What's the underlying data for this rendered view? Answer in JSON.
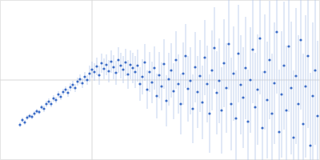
{
  "chart_data": {
    "type": "scatter",
    "x": [
      25,
      28,
      31,
      34,
      37,
      40,
      43,
      46,
      49,
      52,
      55,
      58,
      61,
      64,
      67,
      70,
      73,
      76,
      79,
      82,
      85,
      88,
      91,
      94,
      97,
      100,
      103,
      106,
      109,
      112,
      115,
      118,
      121,
      124,
      127,
      130,
      133,
      136,
      139,
      142,
      145,
      148,
      151,
      154,
      157,
      160,
      163,
      166,
      169,
      172,
      175,
      178,
      181,
      184,
      187,
      190,
      193,
      196,
      199,
      202,
      205,
      208,
      211,
      214,
      217,
      220,
      223,
      226,
      229,
      232,
      235,
      238,
      241,
      244,
      247,
      250,
      253,
      256,
      259,
      262,
      265,
      268,
      271,
      274,
      277,
      280,
      283,
      286,
      289,
      292,
      295,
      298,
      301,
      304,
      307,
      310,
      313,
      316,
      319,
      322,
      325,
      328,
      331,
      334,
      337,
      340,
      343,
      346,
      349,
      352,
      355,
      358,
      361,
      364,
      367,
      370,
      373,
      376,
      379,
      382,
      385,
      388,
      391,
      394,
      397
    ],
    "y": [
      44,
      50,
      47,
      53,
      55,
      54,
      58,
      61,
      60,
      66,
      64,
      70,
      73,
      70,
      77,
      75,
      82,
      79,
      85,
      88,
      84,
      91,
      94,
      90,
      98,
      101,
      96,
      104,
      100,
      108,
      113,
      110,
      117,
      106,
      121,
      114,
      119,
      111,
      123,
      116,
      109,
      125,
      118,
      113,
      122,
      107,
      119,
      115,
      110,
      118,
      95,
      104,
      122,
      88,
      110,
      97,
      115,
      80,
      106,
      92,
      120,
      74,
      101,
      112,
      86,
      125,
      95,
      70,
      108,
      130,
      89,
      99,
      64,
      116,
      85,
      105,
      72,
      128,
      95,
      58,
      112,
      140,
      84,
      99,
      62,
      121,
      90,
      145,
      70,
      108,
      52,
      133,
      94,
      78,
      115,
      48,
      100,
      138,
      66,
      88,
      152,
      40,
      110,
      75,
      125,
      58,
      96,
      160,
      35,
      82,
      118,
      62,
      142,
      90,
      28,
      105,
      70,
      150,
      45,
      92,
      130,
      18,
      80,
      112,
      55
    ],
    "errors": [
      3,
      3,
      3,
      3,
      3,
      3,
      3,
      3,
      3,
      3,
      4,
      4,
      4,
      4,
      4,
      4,
      4,
      4,
      4,
      4,
      5,
      5,
      5,
      5,
      5,
      6,
      6,
      6,
      6,
      10,
      10,
      11,
      11,
      12,
      12,
      13,
      13,
      14,
      14,
      15,
      15,
      16,
      16,
      17,
      17,
      18,
      18,
      19,
      20,
      20,
      21,
      22,
      23,
      24,
      25,
      26,
      27,
      28,
      29,
      30,
      31,
      32,
      33,
      34,
      35,
      36,
      37,
      38,
      39,
      40,
      41,
      42,
      43,
      44,
      45,
      45,
      46,
      47,
      48,
      49,
      50,
      51,
      52,
      53,
      54,
      55,
      56,
      57,
      58,
      59,
      60,
      61,
      62,
      63,
      64,
      65,
      66,
      67,
      68,
      69,
      70,
      71,
      72,
      73,
      74,
      75,
      76,
      77,
      78,
      79,
      80,
      81,
      82,
      83,
      84,
      85,
      86,
      87,
      88,
      89,
      90,
      91,
      92,
      93,
      94
    ],
    "xlim": [
      0,
      400
    ],
    "ylim": [
      0,
      200
    ],
    "xticks": [
      115
    ],
    "yticks": [
      100
    ],
    "grid": true,
    "tick_labels": false,
    "color": "#3a6bc6",
    "marker": "circle"
  }
}
